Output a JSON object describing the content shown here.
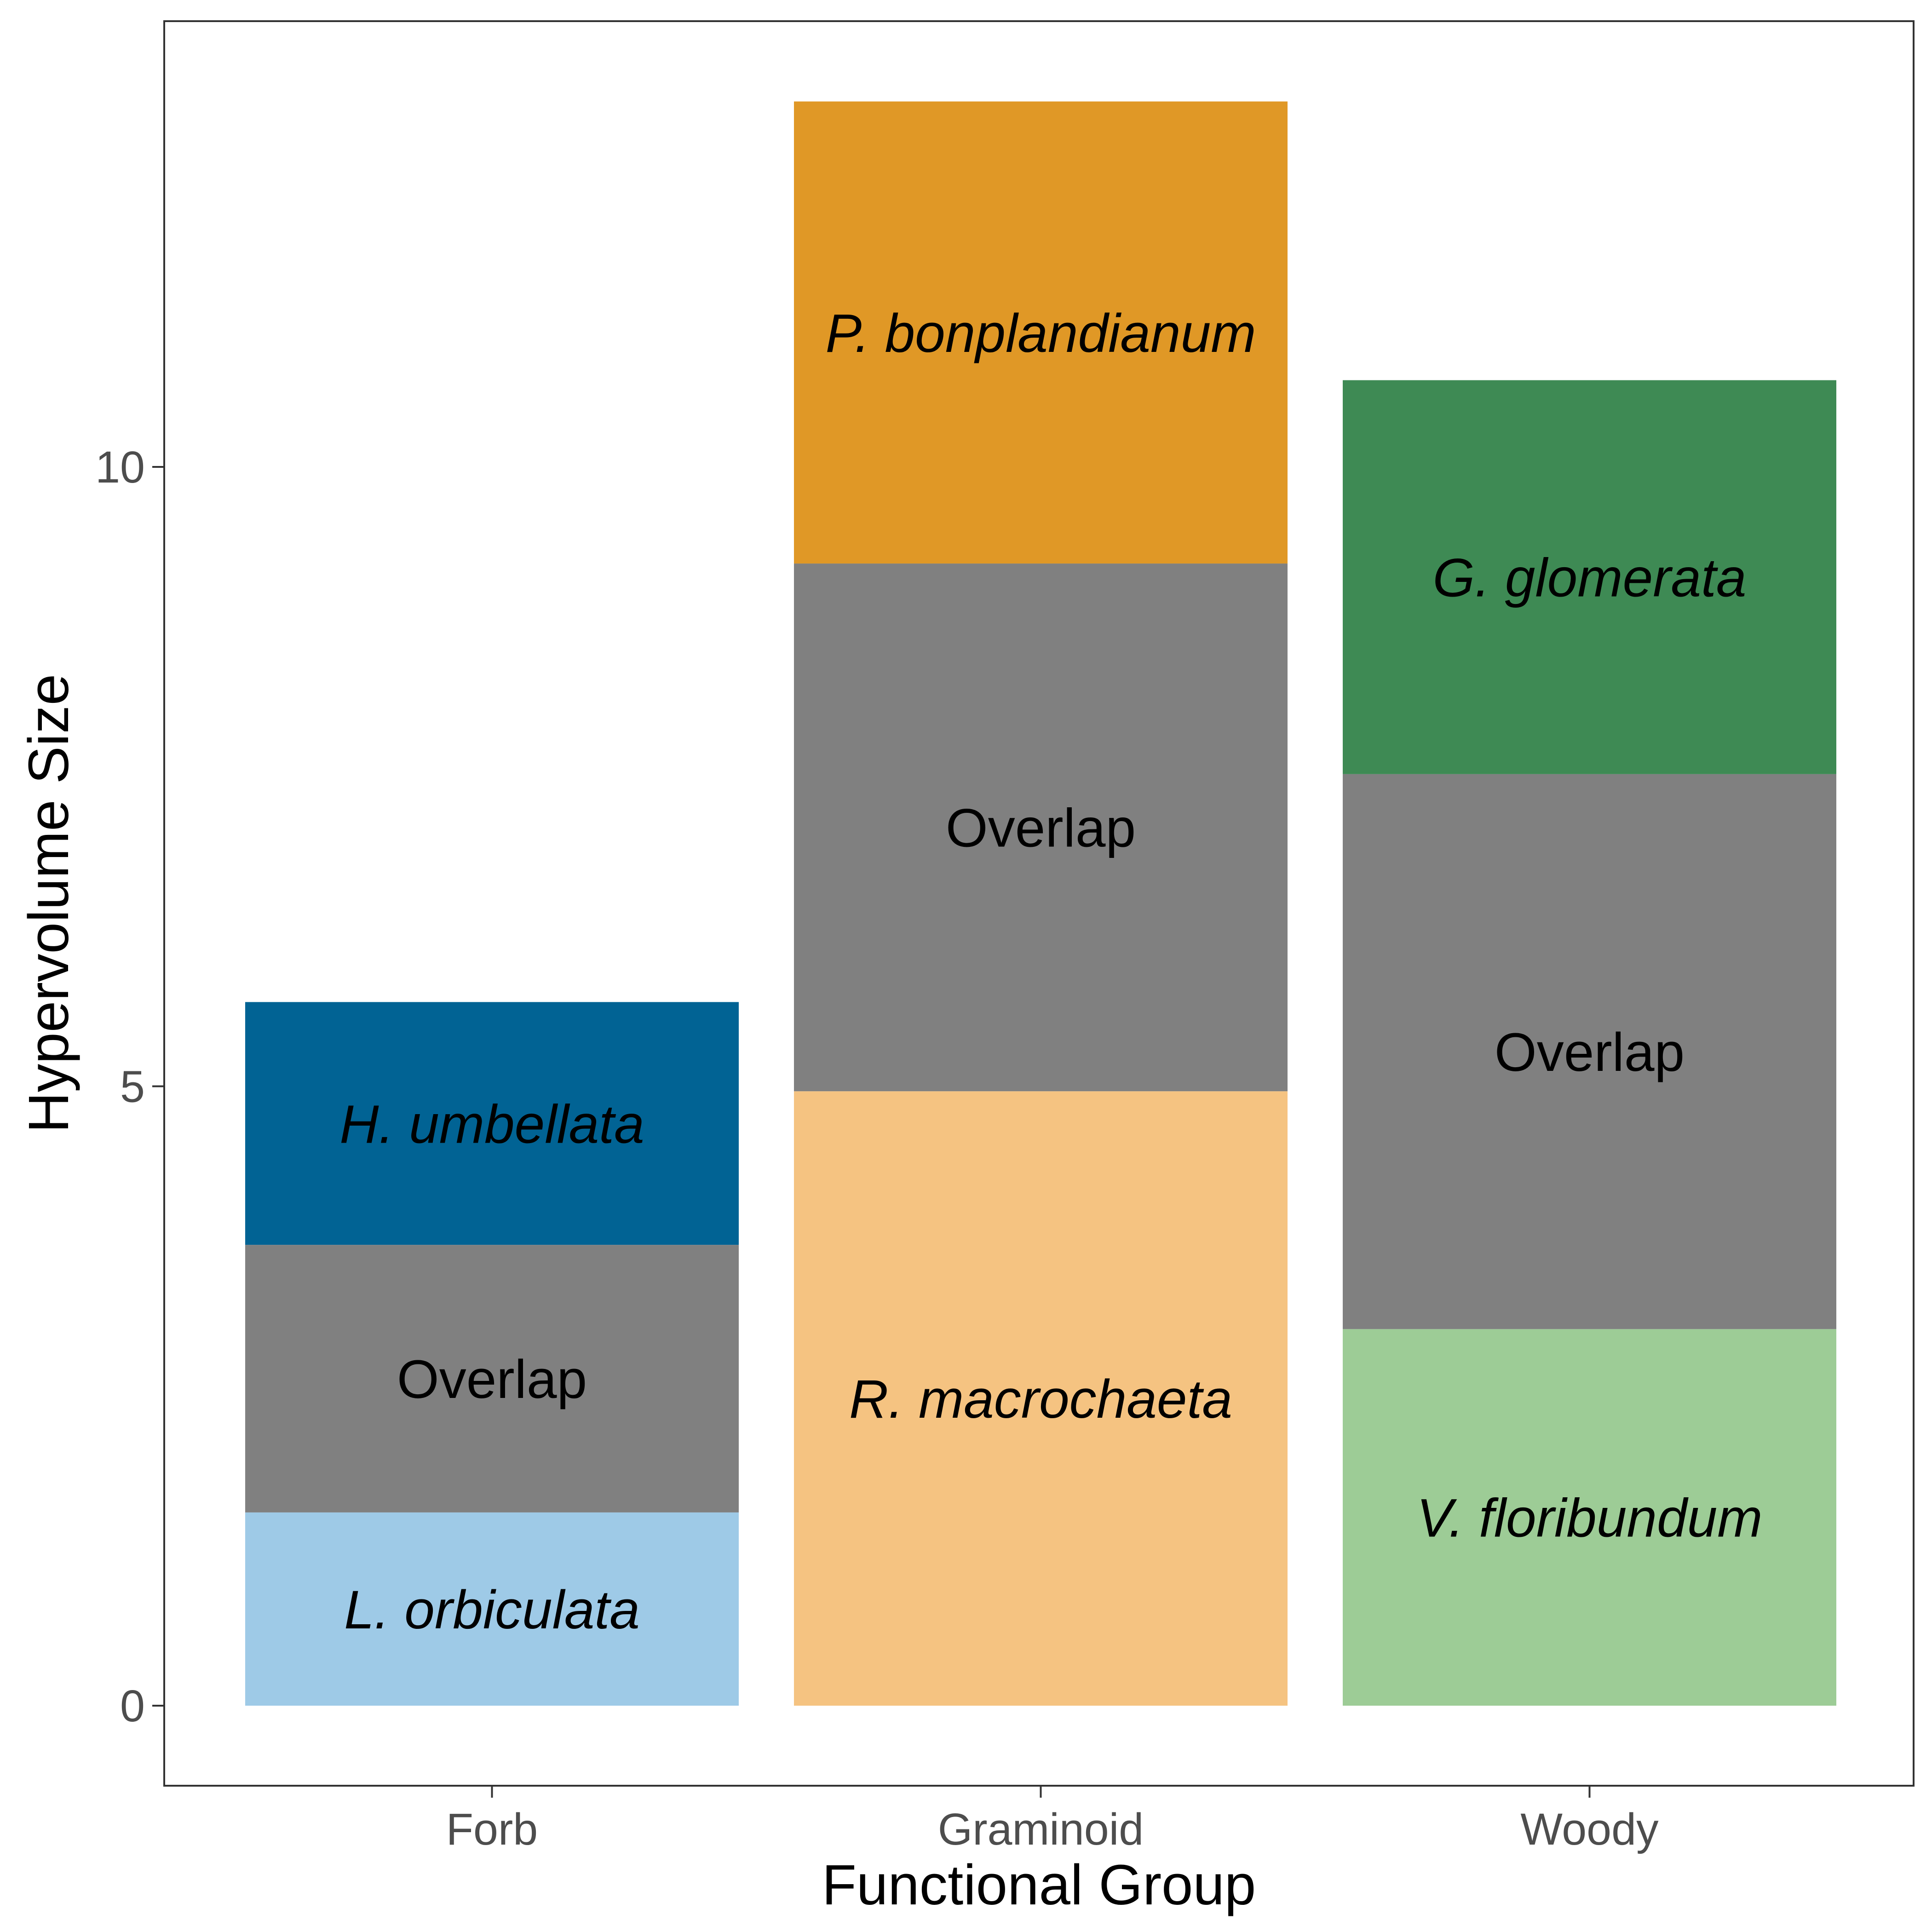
{
  "chart_data": {
    "type": "bar",
    "stacked": true,
    "xlabel": "Functional Group",
    "ylabel": "Hypervolume Size",
    "ylim": [
      -0.65,
      13.6
    ],
    "yticks": [
      0,
      5,
      10
    ],
    "grid": false,
    "categories": [
      "Forb",
      "Graminoid",
      "Woody"
    ],
    "stacks": [
      {
        "category": "Forb",
        "segments": [
          {
            "label": "L. orbiculata",
            "value": 1.56,
            "color": "#9ecae7",
            "italic": true
          },
          {
            "label": "Overlap",
            "value": 2.16,
            "color": "#808080",
            "italic": false
          },
          {
            "label": "H. umbellata",
            "value": 1.96,
            "color": "#016394",
            "italic": true
          }
        ]
      },
      {
        "category": "Graminoid",
        "segments": [
          {
            "label": "R. macrochaeta",
            "value": 4.96,
            "color": "#f5c381",
            "italic": true
          },
          {
            "label": "Overlap",
            "value": 4.26,
            "color": "#808080",
            "italic": false
          },
          {
            "label": "P. bonplandianum",
            "value": 3.73,
            "color": "#e09826",
            "italic": true
          }
        ]
      },
      {
        "category": "Woody",
        "segments": [
          {
            "label": "V. floribundum",
            "value": 3.04,
            "color": "#9dcc96",
            "italic": true
          },
          {
            "label": "Overlap",
            "value": 4.48,
            "color": "#808080",
            "italic": false
          },
          {
            "label": "G. glomerata",
            "value": 3.18,
            "color": "#3e8a54",
            "italic": true
          }
        ]
      }
    ]
  },
  "colors": {
    "panel_border": "#333333",
    "tick_text": "#4d4d4d",
    "background": "#ffffff"
  }
}
